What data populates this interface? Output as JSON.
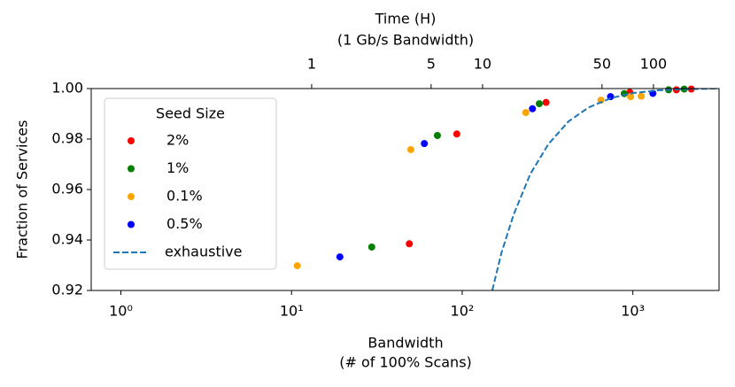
{
  "chart_data": {
    "type": "scatter",
    "xlabel": [
      "Bandwidth",
      "(# of 100% Scans)"
    ],
    "ylabel": "Fraction of Services",
    "x2label": [
      "Time (H)",
      "(1 Gb/s Bandwidth)"
    ],
    "xscale": "log",
    "x2scale": "log",
    "xlim": [
      0.67,
      3200
    ],
    "x2lim": [
      0.0513,
      242
    ],
    "ylim": [
      0.92,
      1.0
    ],
    "xticks": [
      {
        "value": 1,
        "label": "10⁰"
      },
      {
        "value": 10,
        "label": "10¹"
      },
      {
        "value": 100,
        "label": "10²"
      },
      {
        "value": 1000,
        "label": "10³"
      }
    ],
    "x2ticks": [
      1,
      5,
      10,
      50,
      100
    ],
    "yticks": [
      0.92,
      0.94,
      0.96,
      0.98,
      {
        "value": 1.0,
        "label": "1.00"
      }
    ],
    "legend_title": "Seed Size",
    "legend_loc": "upper left",
    "series": [
      {
        "name": "2%",
        "color": "#ff0000",
        "x": [
          49,
          93,
          310,
          960,
          1800,
          2200
        ],
        "values": [
          0.9385,
          0.982,
          0.9945,
          0.9985,
          0.9995,
          0.9998
        ]
      },
      {
        "name": "1%",
        "color": "#008000",
        "x": [
          29.5,
          71.6,
          283,
          890,
          1620,
          2000
        ],
        "values": [
          0.9372,
          0.9814,
          0.994,
          0.998,
          0.9995,
          0.9998
        ]
      },
      {
        "name": "0.1%",
        "color": "#ffa500",
        "x": [
          10.8,
          50,
          236,
          650,
          970,
          1120
        ],
        "values": [
          0.9298,
          0.9758,
          0.9905,
          0.9954,
          0.9968,
          0.997
        ]
      },
      {
        "name": "0.5%",
        "color": "#0000ff",
        "x": [
          19.2,
          60,
          258,
          740,
          1310
        ],
        "values": [
          0.9333,
          0.9782,
          0.992,
          0.9968,
          0.9981
        ]
      },
      {
        "name": "exhaustive",
        "type": "line",
        "dashed": true,
        "color": "#1f77b4",
        "x": [
          150,
          170,
          200,
          250,
          320,
          420,
          550,
          750,
          1000,
          1400,
          2000,
          3200
        ],
        "values": [
          0.92,
          0.935,
          0.95,
          0.966,
          0.978,
          0.987,
          0.9925,
          0.9963,
          0.9982,
          0.9993,
          0.9998,
          1.0
        ]
      }
    ]
  }
}
